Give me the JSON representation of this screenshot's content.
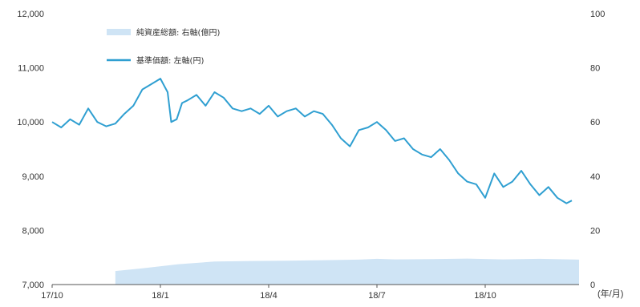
{
  "chart_data": {
    "type": "line",
    "title": "",
    "xlabel": "",
    "ylabel": "",
    "unit_label": "(年/月)",
    "legend": [
      {
        "name": "純資産総額: 右軸(億円)",
        "kind": "area",
        "color": "#cfe4f5"
      },
      {
        "name": "基準価額: 左軸(円)",
        "kind": "line",
        "color": "#2f9fd1"
      }
    ],
    "left_axis": {
      "min": 7000,
      "max": 12000,
      "ticks": [
        7000,
        8000,
        9000,
        10000,
        11000,
        12000
      ],
      "labels": [
        "7,000",
        "8,000",
        "9,000",
        "10,000",
        "11,000",
        "12,000"
      ]
    },
    "right_axis": {
      "min": 0,
      "max": 100,
      "ticks": [
        0,
        20,
        40,
        60,
        80,
        100
      ],
      "labels": [
        "0",
        "20",
        "40",
        "60",
        "80",
        "100"
      ]
    },
    "x_axis": {
      "labels": [
        "17/10",
        "18/1",
        "18/4",
        "18/7",
        "18/10"
      ],
      "tick_months": [
        0,
        3,
        6,
        9,
        12
      ],
      "range_months": [
        0,
        14.6
      ]
    },
    "grid": false,
    "legend_position": "top-left",
    "series": [
      {
        "name": "基準価額: 左軸(円)",
        "axis": "left",
        "x_months": [
          0,
          0.25,
          0.5,
          0.75,
          1.0,
          1.25,
          1.5,
          1.75,
          2.0,
          2.25,
          2.5,
          2.75,
          3.0,
          3.2,
          3.3,
          3.45,
          3.6,
          3.75,
          4.0,
          4.25,
          4.5,
          4.75,
          5.0,
          5.25,
          5.5,
          5.75,
          6.0,
          6.25,
          6.5,
          6.75,
          7.0,
          7.25,
          7.5,
          7.75,
          8.0,
          8.25,
          8.5,
          8.75,
          9.0,
          9.25,
          9.5,
          9.75,
          10.0,
          10.25,
          10.5,
          10.75,
          11.0,
          11.25,
          11.5,
          11.75,
          12.0,
          12.25,
          12.5,
          12.75,
          13.0,
          13.25,
          13.5,
          13.75,
          14.0,
          14.25,
          14.4
        ],
        "values": [
          10000,
          9900,
          10050,
          9950,
          10250,
          10000,
          9920,
          9970,
          10150,
          10300,
          10600,
          10700,
          10800,
          10550,
          10000,
          10050,
          10350,
          10400,
          10500,
          10300,
          10550,
          10450,
          10250,
          10200,
          10250,
          10150,
          10300,
          10100,
          10200,
          10250,
          10100,
          10200,
          10150,
          9950,
          9700,
          9550,
          9850,
          9900,
          10000,
          9850,
          9650,
          9700,
          9500,
          9400,
          9350,
          9500,
          9300,
          9050,
          8900,
          8850,
          8600,
          9050,
          8800,
          8900,
          9100,
          8850,
          8650,
          8800,
          8600,
          8500,
          8550
        ]
      },
      {
        "name": "純資産総額: 右軸(億円)",
        "axis": "right",
        "x_months": [
          1.75,
          2.5,
          3.5,
          4.5,
          5.5,
          6.5,
          7.5,
          8.5,
          9.0,
          9.5,
          10.5,
          11.5,
          12.5,
          13.5,
          14.6
        ],
        "values": [
          5,
          6,
          7.5,
          8.5,
          8.7,
          8.8,
          9.0,
          9.2,
          9.5,
          9.3,
          9.4,
          9.6,
          9.3,
          9.5,
          9.2
        ]
      }
    ]
  }
}
